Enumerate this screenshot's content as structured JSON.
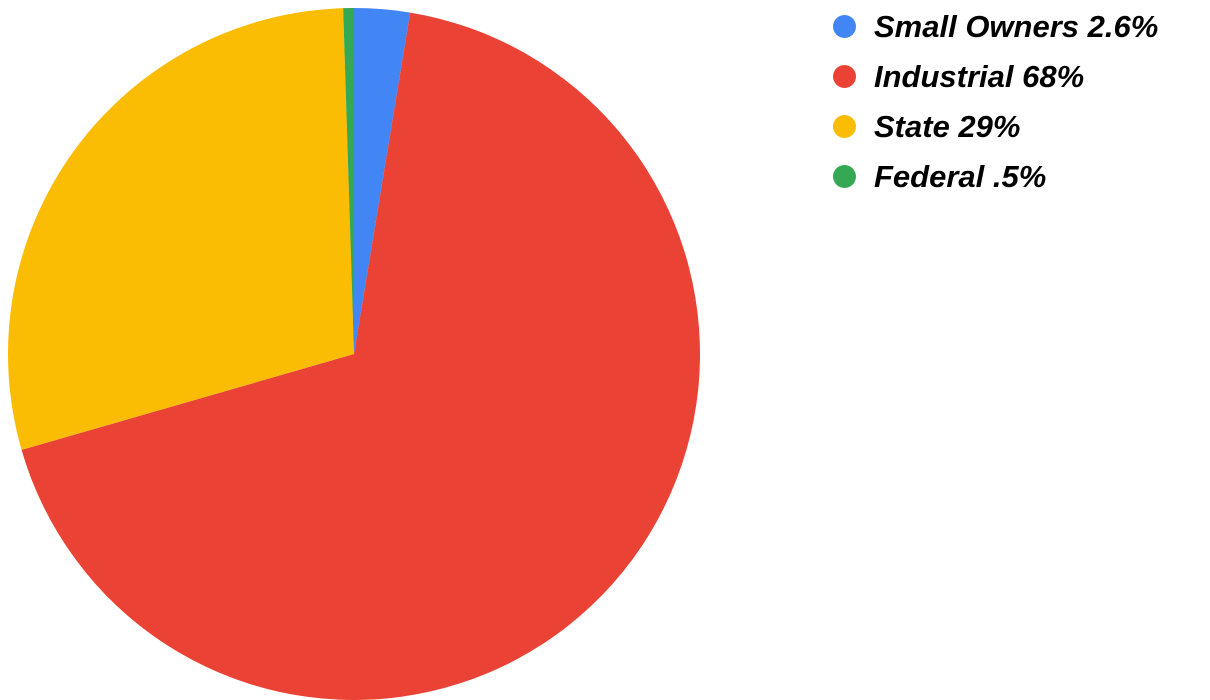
{
  "chart_data": {
    "type": "pie",
    "title": "",
    "start_angle_deg": 0,
    "direction": "clockwise",
    "legend_position": "right",
    "slices": [
      {
        "label": "Small Owners 2.6%",
        "value": 2.6,
        "color": "#4285F4"
      },
      {
        "label": "Industrial 68%",
        "value": 68,
        "color": "#EA4335"
      },
      {
        "label": "State 29%",
        "value": 29,
        "color": "#FBBC04"
      },
      {
        "label": "Federal .5%",
        "value": 0.5,
        "color": "#34A853"
      }
    ]
  }
}
